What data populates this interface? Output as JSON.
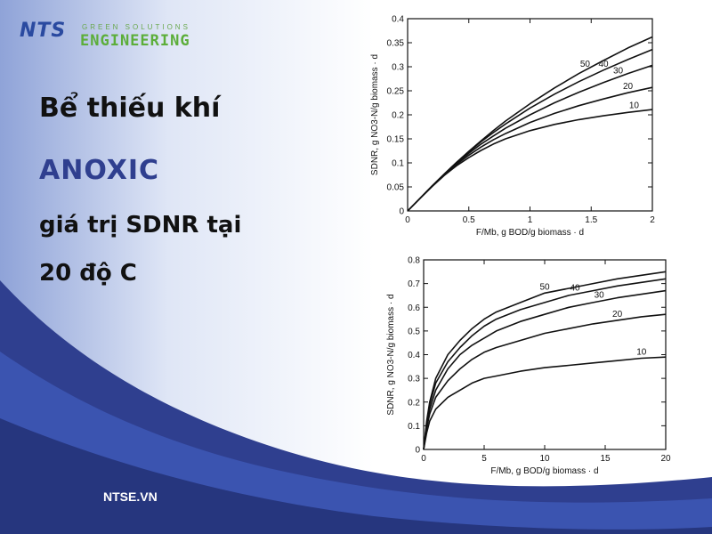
{
  "logo": {
    "brand": "NTS",
    "tagline": "GREEN SOLUTIONS",
    "name": "ENGINEERING"
  },
  "heading": {
    "line1": "Bể thiếu khí",
    "line2": "ANOXIC",
    "line3": "giá trị SDNR tại",
    "line4": "20 độ C"
  },
  "footer": {
    "site": "NTSE.VN"
  },
  "colors": {
    "navy": "#2f3f8f",
    "green": "#5cae3a",
    "ink": "#111111"
  },
  "chart_data": [
    {
      "type": "line",
      "ylabel": "SDNR, g NO3-N/g biomass · d",
      "xlabel": "F/Mb, g BOD/g biomass · d",
      "xlim": [
        0,
        2
      ],
      "ylim": [
        0,
        0.4
      ],
      "xticks": [
        "0",
        "0.5",
        "1",
        "1.5",
        "2"
      ],
      "yticks": [
        "0",
        "0.05",
        "0.1",
        "0.15",
        "0.2",
        "0.25",
        "0.3",
        "0.35",
        "0.4"
      ],
      "x": [
        0,
        0.1,
        0.2,
        0.3,
        0.4,
        0.5,
        0.6,
        0.7,
        0.8,
        1.0,
        1.2,
        1.4,
        1.6,
        1.8,
        2.0
      ],
      "series": [
        {
          "name": "50",
          "values": [
            0,
            0.026,
            0.052,
            0.077,
            0.101,
            0.124,
            0.146,
            0.167,
            0.187,
            0.223,
            0.256,
            0.286,
            0.313,
            0.339,
            0.362
          ]
        },
        {
          "name": "40",
          "values": [
            0,
            0.026,
            0.052,
            0.077,
            0.101,
            0.123,
            0.144,
            0.163,
            0.181,
            0.214,
            0.243,
            0.269,
            0.293,
            0.315,
            0.336
          ]
        },
        {
          "name": "30",
          "values": [
            0,
            0.026,
            0.052,
            0.076,
            0.099,
            0.12,
            0.139,
            0.156,
            0.172,
            0.2,
            0.225,
            0.247,
            0.267,
            0.286,
            0.303
          ]
        },
        {
          "name": "20",
          "values": [
            0,
            0.026,
            0.051,
            0.075,
            0.097,
            0.116,
            0.133,
            0.148,
            0.161,
            0.184,
            0.203,
            0.219,
            0.233,
            0.246,
            0.257
          ]
        },
        {
          "name": "10",
          "values": [
            0,
            0.026,
            0.051,
            0.074,
            0.094,
            0.111,
            0.126,
            0.139,
            0.15,
            0.167,
            0.18,
            0.19,
            0.198,
            0.205,
            0.211
          ]
        }
      ]
    },
    {
      "type": "line",
      "ylabel": "SDNR, g NO3-N/g biomass · d",
      "xlabel": "F/Mb, g BOD/g biomass · d",
      "xlim": [
        0,
        20
      ],
      "ylim": [
        0,
        0.8
      ],
      "xticks": [
        "0",
        "5",
        "10",
        "15",
        "20"
      ],
      "yticks": [
        "0",
        "0.1",
        "0.2",
        "0.3",
        "0.4",
        "0.5",
        "0.6",
        "0.7",
        "0.8"
      ],
      "x": [
        0,
        0.25,
        0.5,
        1,
        2,
        3,
        4,
        5,
        6,
        8,
        10,
        12,
        14,
        16,
        18,
        20
      ],
      "series": [
        {
          "name": "50",
          "values": [
            0,
            0.12,
            0.2,
            0.3,
            0.4,
            0.46,
            0.51,
            0.55,
            0.58,
            0.62,
            0.66,
            0.68,
            0.7,
            0.72,
            0.735,
            0.75
          ]
        },
        {
          "name": "40",
          "values": [
            0,
            0.11,
            0.19,
            0.28,
            0.37,
            0.43,
            0.48,
            0.52,
            0.55,
            0.59,
            0.62,
            0.65,
            0.67,
            0.69,
            0.705,
            0.72
          ]
        },
        {
          "name": "30",
          "values": [
            0,
            0.1,
            0.17,
            0.25,
            0.34,
            0.4,
            0.44,
            0.47,
            0.5,
            0.54,
            0.57,
            0.6,
            0.62,
            0.64,
            0.655,
            0.67
          ]
        },
        {
          "name": "20",
          "values": [
            0,
            0.09,
            0.15,
            0.22,
            0.29,
            0.34,
            0.38,
            0.41,
            0.43,
            0.46,
            0.49,
            0.51,
            0.53,
            0.545,
            0.56,
            0.57
          ]
        },
        {
          "name": "10",
          "values": [
            0,
            0.07,
            0.12,
            0.17,
            0.22,
            0.25,
            0.28,
            0.3,
            0.31,
            0.33,
            0.345,
            0.355,
            0.365,
            0.375,
            0.385,
            0.39
          ]
        }
      ]
    }
  ]
}
